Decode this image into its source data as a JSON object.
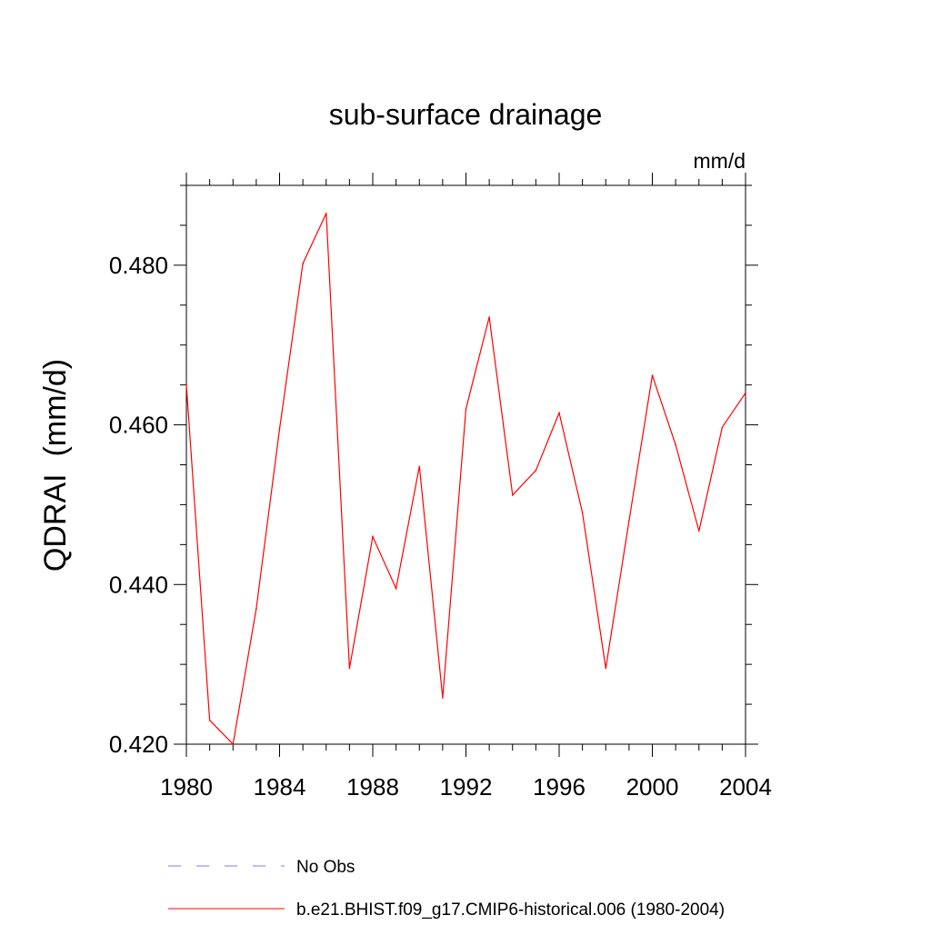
{
  "chart_data": {
    "type": "line",
    "title": "sub-surface drainage",
    "units_label": "mm/d",
    "ylabel": "QDRAI  (mm/d)",
    "xlabel": "",
    "xlim": [
      1980,
      2004
    ],
    "ylim": [
      0.42,
      0.49
    ],
    "xticks": [
      1980,
      1984,
      1988,
      1992,
      1996,
      2000,
      2004
    ],
    "xtick_labels": [
      "1980",
      "1984",
      "1988",
      "1992",
      "1996",
      "2000",
      "2004"
    ],
    "yticks": [
      0.42,
      0.44,
      0.46,
      0.48
    ],
    "ytick_labels": [
      "0.420",
      "0.440",
      "0.460",
      "0.480"
    ],
    "grid": false,
    "legend_position": "bottom",
    "series": [
      {
        "name": "b.e21.BHIST.f09_g17.CMIP6-historical.006 (1980-2004)",
        "color": "#ff0000",
        "line_style": "solid",
        "x": [
          1980,
          1981,
          1982,
          1983,
          1984,
          1985,
          1986,
          1987,
          1988,
          1989,
          1990,
          1991,
          1992,
          1993,
          1994,
          1995,
          1996,
          1997,
          1998,
          1999,
          2000,
          2001,
          2002,
          2003,
          2004
        ],
        "y": [
          0.465,
          0.423,
          0.42,
          0.437,
          0.4595,
          0.4802,
          0.4865,
          0.4295,
          0.446,
          0.4395,
          0.4548,
          0.4258,
          0.462,
          0.4735,
          0.4512,
          0.4543,
          0.4615,
          0.449,
          0.4295,
          0.448,
          0.4662,
          0.4575,
          0.4467,
          0.4597,
          0.464
        ]
      }
    ],
    "legend": [
      {
        "label": "No Obs",
        "color": "#7a7aff",
        "line_style": "dashed"
      },
      {
        "label": "b.e21.BHIST.f09_g17.CMIP6-historical.006 (1980-2004)",
        "color": "#ff0000",
        "line_style": "solid"
      }
    ]
  }
}
